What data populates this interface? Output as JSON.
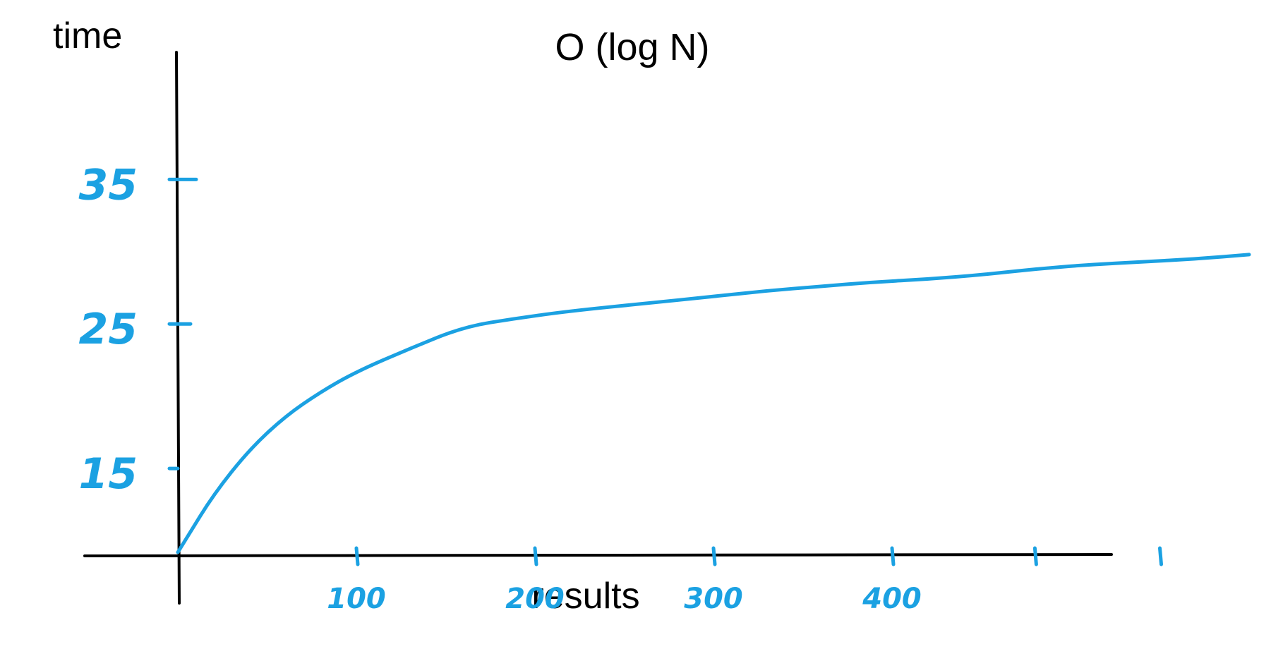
{
  "chart_data": {
    "type": "line",
    "title": "O (log N)",
    "ylabel": "time",
    "xlabel": "results",
    "accent_color": "#1ba1e2",
    "axis_color": "#000000",
    "grid": false,
    "x_ticks": [
      {
        "label": "100",
        "value": 100
      },
      {
        "label": "200",
        "value": 200
      },
      {
        "label": "300",
        "value": 300
      },
      {
        "label": "400",
        "value": 400
      },
      {
        "label": "",
        "value": 480
      },
      {
        "label": "",
        "value": 550
      }
    ],
    "y_ticks": [
      {
        "label": "15",
        "value": 15
      },
      {
        "label": "25",
        "value": 25
      },
      {
        "label": "35",
        "value": 35
      }
    ],
    "xlim": [
      0,
      600
    ],
    "ylim": [
      9,
      42
    ],
    "series": [
      {
        "x": [
          0,
          5,
          20,
          40,
          60,
          80,
          100,
          130,
          160,
          190,
          220,
          260,
          300,
          330,
          360,
          390,
          420,
          450,
          480,
          510,
          540,
          570,
          600
        ],
        "y": [
          9.2,
          10.2,
          13.2,
          16.3,
          18.6,
          20.3,
          21.7,
          23.3,
          24.8,
          25.4,
          25.9,
          26.4,
          26.9,
          27.3,
          27.6,
          27.9,
          28.1,
          28.4,
          28.8,
          29.1,
          29.3,
          29.5,
          29.8
        ]
      }
    ]
  }
}
